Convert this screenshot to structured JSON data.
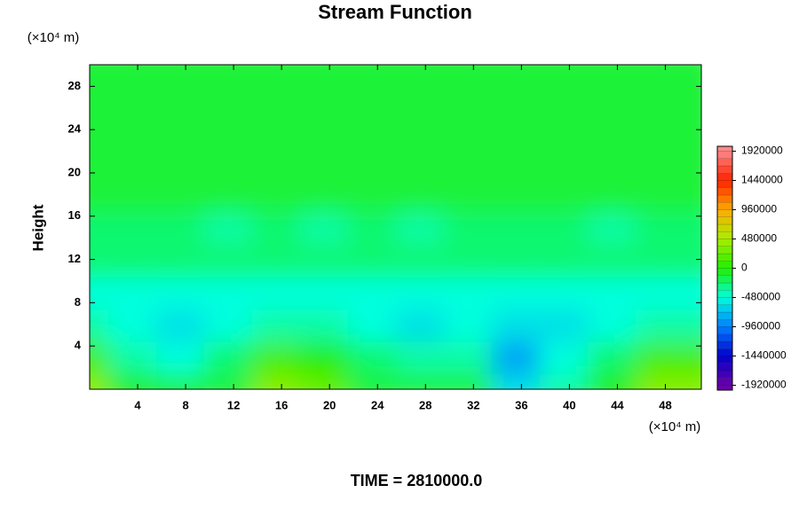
{
  "chart_data": {
    "type": "contour",
    "title": "Stream Function",
    "ylabel": "Height",
    "y_unit_label": "(×10⁴ m)",
    "x_unit_label": "(×10⁴ m)",
    "annotation": "TIME = 2810000.0",
    "xlim": [
      0,
      51
    ],
    "ylim": [
      0,
      30
    ],
    "xticks": [
      4,
      8,
      12,
      16,
      20,
      24,
      28,
      32,
      36,
      40,
      44,
      48
    ],
    "yticks": [
      4,
      8,
      12,
      16,
      20,
      24,
      28
    ],
    "x": [
      1,
      5,
      9,
      13,
      17,
      21,
      25,
      29,
      33,
      37,
      41,
      45,
      49
    ],
    "y": [
      1.5,
      4.5,
      7.5,
      10.5,
      13.5,
      16.5,
      19.5,
      22.5,
      25.5,
      28.5
    ],
    "z": [
      [
        400000,
        0,
        -120000,
        -120000,
        360000,
        240000,
        -120000,
        -120000,
        -120000,
        -600000,
        -360000,
        0,
        360000
      ],
      [
        120000,
        -360000,
        -480000,
        -240000,
        120000,
        0,
        -240000,
        -360000,
        -360000,
        -840000,
        -480000,
        -240000,
        120000
      ],
      [
        -360000,
        -480000,
        -600000,
        -480000,
        -360000,
        -360000,
        -480000,
        -600000,
        -480000,
        -600000,
        -600000,
        -480000,
        -360000
      ],
      [
        -480000,
        -480000,
        -480000,
        -480000,
        -480000,
        -480000,
        -480000,
        -480000,
        -480000,
        -480000,
        -480000,
        -480000,
        -480000
      ],
      [
        -240000,
        -240000,
        -240000,
        -240000,
        -240000,
        -240000,
        -240000,
        -240000,
        -240000,
        -240000,
        -240000,
        -240000,
        -240000
      ],
      [
        -240000,
        -240000,
        -240000,
        -360000,
        -240000,
        -360000,
        -240000,
        -360000,
        -240000,
        -240000,
        -240000,
        -360000,
        -240000
      ],
      [
        -120000,
        -120000,
        -120000,
        -120000,
        -120000,
        -120000,
        -120000,
        -120000,
        -120000,
        -120000,
        -120000,
        -120000,
        -120000
      ],
      [
        -120000,
        -120000,
        -120000,
        -120000,
        -120000,
        -120000,
        -120000,
        -120000,
        -120000,
        -120000,
        -120000,
        -120000,
        -120000
      ],
      [
        -120000,
        -120000,
        -120000,
        -120000,
        -120000,
        -120000,
        -120000,
        -120000,
        -120000,
        -120000,
        -120000,
        -120000,
        -120000
      ],
      [
        -120000,
        -120000,
        -120000,
        -120000,
        -120000,
        -120000,
        -120000,
        -120000,
        -120000,
        -120000,
        -120000,
        -120000,
        -120000
      ]
    ],
    "colorbar": {
      "zlim": [
        -2000000,
        2000000
      ],
      "ticks": [
        -1920000,
        -1440000,
        -960000,
        -480000,
        0,
        480000,
        960000,
        1440000,
        1920000
      ],
      "colors": [
        "#6a00a8",
        "#0000cc",
        "#0080ff",
        "#00ffdd",
        "#22ee00",
        "#aaee00",
        "#ffaa00",
        "#ff2200",
        "#ff8888"
      ]
    }
  }
}
